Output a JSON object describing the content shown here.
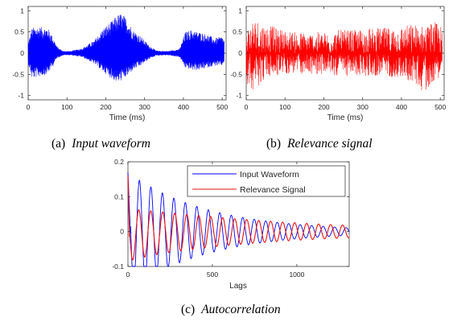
{
  "chart_data": [
    {
      "type": "line",
      "panel": "a",
      "caption_label": "(a)",
      "caption_title": "Input waveform",
      "xlabel": "Time (ms)",
      "xlim": [
        0,
        510
      ],
      "ylim": [
        -1.1,
        1.1
      ],
      "xticks": [
        0,
        100,
        200,
        300,
        400,
        500
      ],
      "yticks": [
        -1,
        -0.5,
        0,
        0.5,
        1
      ],
      "xtick_labels": [
        "0",
        "100",
        "200",
        "300",
        "400",
        "500"
      ],
      "ytick_labels": [
        "-1",
        "-0.5",
        "0",
        "0.5",
        "1"
      ],
      "color": "#0000ff",
      "envelope": {
        "t": [
          0,
          10,
          30,
          50,
          60,
          75,
          90,
          110,
          140,
          170,
          195,
          215,
          230,
          240,
          255,
          270,
          290,
          310,
          330,
          360,
          390,
          405,
          420,
          440,
          460,
          480,
          500,
          505
        ],
        "pos": [
          0.25,
          0.6,
          0.62,
          0.6,
          0.45,
          0.15,
          0.05,
          0.05,
          0.12,
          0.3,
          0.6,
          0.75,
          0.9,
          0.95,
          0.8,
          0.55,
          0.4,
          0.2,
          0.06,
          0.05,
          0.1,
          0.5,
          0.55,
          0.5,
          0.45,
          0.35,
          0.4,
          0.3
        ],
        "neg": [
          0.25,
          0.6,
          0.55,
          0.5,
          0.35,
          0.12,
          0.05,
          0.05,
          0.1,
          0.25,
          0.45,
          0.6,
          0.7,
          0.65,
          0.55,
          0.4,
          0.3,
          0.15,
          0.06,
          0.05,
          0.1,
          0.35,
          0.4,
          0.4,
          0.35,
          0.3,
          0.3,
          0.2
        ]
      }
    },
    {
      "type": "line",
      "panel": "b",
      "caption_label": "(b)",
      "caption_title": "Relevance signal",
      "xlabel": "Time (ms)",
      "xlim": [
        0,
        510
      ],
      "ylim": [
        -1.1,
        1.1
      ],
      "xticks": [
        0,
        100,
        200,
        300,
        400,
        500
      ],
      "yticks": [
        -1,
        -0.5,
        0,
        0.5,
        1
      ],
      "xtick_labels": [
        "0",
        "100",
        "200",
        "300",
        "400",
        "500"
      ],
      "ytick_labels": [
        "-1",
        "-0.5",
        "0",
        "0.5",
        "1"
      ],
      "color": "#ff0000",
      "envelope": {
        "t": [
          0,
          20,
          50,
          80,
          100,
          130,
          160,
          200,
          240,
          280,
          320,
          360,
          400,
          430,
          460,
          480,
          500,
          505
        ],
        "pos": [
          0.6,
          0.85,
          0.7,
          0.6,
          0.55,
          0.5,
          0.5,
          0.5,
          0.55,
          0.55,
          0.6,
          0.6,
          0.65,
          0.7,
          0.65,
          0.75,
          0.7,
          0.5
        ],
        "neg": [
          0.7,
          0.9,
          0.6,
          0.55,
          0.5,
          0.5,
          0.5,
          0.5,
          0.55,
          0.55,
          0.55,
          0.55,
          0.6,
          0.7,
          0.95,
          0.7,
          0.55,
          0.4
        ]
      }
    },
    {
      "type": "line",
      "panel": "c",
      "caption_label": "(c)",
      "caption_title": "Autocorrelation",
      "xlabel": "Lags",
      "xlim": [
        0,
        1310
      ],
      "ylim": [
        -0.1,
        0.2
      ],
      "xticks": [
        0,
        500,
        1000
      ],
      "yticks": [
        -0.1,
        0,
        0.1,
        0.2
      ],
      "xtick_labels": [
        "0",
        "500",
        "1000"
      ],
      "ytick_labels": [
        "-0.1",
        "0",
        "0.1",
        "0.2"
      ],
      "legend_position": "top-right",
      "series": [
        {
          "name": "Input Waveform",
          "color": "#0000ff",
          "amp0": 0.17,
          "decay": 0.0021,
          "period": 68,
          "phase": 0.0
        },
        {
          "name": "Relevance Signal",
          "color": "#ee1111",
          "amp0": 0.075,
          "decay": 0.0011,
          "period": 71,
          "phase": 0.6
        }
      ]
    }
  ]
}
